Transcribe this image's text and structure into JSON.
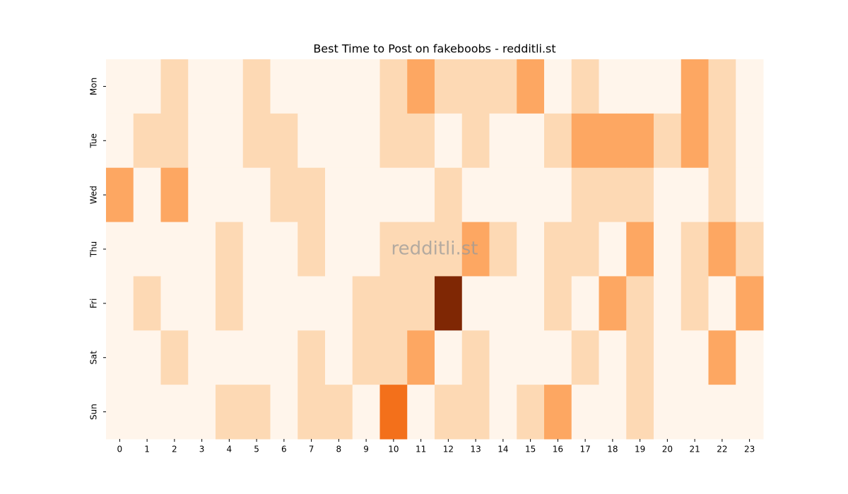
{
  "chart_data": {
    "type": "heatmap",
    "title": "Best Time to Post on fakeboobs - redditli.st",
    "watermark": "redditli.st",
    "colormap": "Oranges",
    "x": [
      0,
      1,
      2,
      3,
      4,
      5,
      6,
      7,
      8,
      9,
      10,
      11,
      12,
      13,
      14,
      15,
      16,
      17,
      18,
      19,
      20,
      21,
      22,
      23
    ],
    "y": [
      "Mon",
      "Tue",
      "Wed",
      "Thu",
      "Fri",
      "Sat",
      "Sun"
    ],
    "values": [
      [
        0,
        0,
        1,
        0,
        0,
        1,
        0,
        0,
        0,
        0,
        1,
        2,
        1,
        1,
        1,
        2,
        0,
        1,
        0,
        0,
        0,
        2,
        1,
        0
      ],
      [
        0,
        1,
        1,
        0,
        0,
        1,
        1,
        0,
        0,
        0,
        1,
        1,
        0,
        1,
        0,
        0,
        1,
        2,
        2,
        2,
        1,
        2,
        1,
        0
      ],
      [
        2,
        0,
        2,
        0,
        0,
        0,
        1,
        1,
        0,
        0,
        0,
        0,
        1,
        0,
        0,
        0,
        0,
        1,
        1,
        1,
        0,
        0,
        1,
        0
      ],
      [
        0,
        0,
        0,
        0,
        1,
        0,
        0,
        1,
        0,
        0,
        1,
        1,
        1,
        2,
        1,
        0,
        1,
        1,
        0,
        2,
        0,
        1,
        2,
        1
      ],
      [
        0,
        1,
        0,
        0,
        1,
        0,
        0,
        0,
        0,
        1,
        1,
        1,
        5,
        0,
        0,
        0,
        1,
        0,
        2,
        1,
        0,
        1,
        0,
        2
      ],
      [
        0,
        0,
        1,
        0,
        0,
        0,
        0,
        1,
        0,
        1,
        1,
        2,
        0,
        1,
        0,
        0,
        0,
        1,
        0,
        1,
        0,
        0,
        2,
        0
      ],
      [
        0,
        0,
        0,
        0,
        1,
        1,
        0,
        1,
        1,
        0,
        3,
        0,
        1,
        1,
        0,
        1,
        2,
        0,
        0,
        1,
        0,
        0,
        0,
        0
      ]
    ]
  }
}
